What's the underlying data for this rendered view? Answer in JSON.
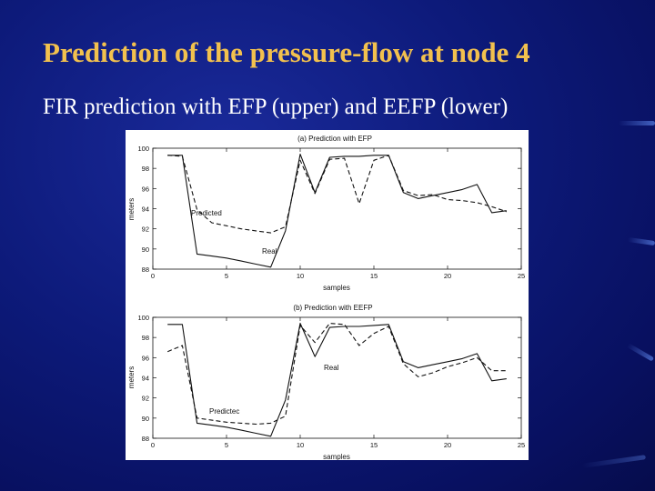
{
  "slide": {
    "title": "Prediction of the pressure-flow at node 4",
    "subtitle": "FIR prediction with EFP (upper) and EEFP (lower)"
  },
  "colors": {
    "background": "#0d1a7a",
    "title": "#f2c14e",
    "text": "#ffffff"
  },
  "chart_data": [
    {
      "type": "line",
      "title": "(a) Prediction with EFP",
      "xlabel": "samples",
      "ylabel": "meters",
      "xlim": [
        0,
        25
      ],
      "ylim": [
        88,
        100
      ],
      "xticks": [
        0,
        5,
        10,
        15,
        20,
        25
      ],
      "yticks": [
        88,
        90,
        92,
        94,
        96,
        98,
        100
      ],
      "annotations": [
        "Predicted",
        "Real"
      ],
      "series": [
        {
          "name": "Real",
          "style": "solid",
          "x": [
            1,
            2,
            3,
            4,
            5,
            6,
            7,
            8,
            9,
            10,
            11,
            12,
            13,
            14,
            15,
            16,
            17,
            18,
            19,
            20,
            21,
            22,
            23,
            24
          ],
          "y": [
            99.3,
            99.3,
            89.5,
            89.3,
            89.1,
            88.8,
            88.5,
            88.2,
            91.8,
            99.4,
            95.6,
            99.1,
            99.2,
            99.2,
            99.3,
            99.3,
            95.6,
            95.0,
            95.3,
            95.6,
            95.9,
            96.4,
            93.6,
            93.8
          ]
        },
        {
          "name": "Predicted",
          "style": "dashed",
          "x": [
            1,
            2,
            3,
            4,
            5,
            6,
            7,
            8,
            9,
            10,
            11,
            12,
            13,
            14,
            15,
            16,
            17,
            18,
            19,
            20,
            21,
            22,
            23,
            24
          ],
          "y": [
            99.3,
            99.2,
            93.9,
            92.6,
            92.3,
            92.0,
            91.8,
            91.6,
            92.2,
            98.8,
            95.5,
            98.9,
            99.0,
            94.5,
            98.8,
            99.3,
            95.8,
            95.3,
            95.4,
            94.9,
            94.8,
            94.6,
            94.2,
            93.7
          ]
        }
      ]
    },
    {
      "type": "line",
      "title": "(b) Prediction with EEFP",
      "xlabel": "samples",
      "ylabel": "meters",
      "xlim": [
        0,
        25
      ],
      "ylim": [
        88,
        100
      ],
      "xticks": [
        0,
        5,
        10,
        15,
        20,
        25
      ],
      "yticks": [
        88,
        90,
        92,
        94,
        96,
        98,
        100
      ],
      "annotations": [
        "Real",
        "Predictec"
      ],
      "series": [
        {
          "name": "Real",
          "style": "solid",
          "x": [
            1,
            2,
            3,
            4,
            5,
            6,
            7,
            8,
            9,
            10,
            11,
            12,
            13,
            14,
            15,
            16,
            17,
            18,
            19,
            20,
            21,
            22,
            23,
            24
          ],
          "y": [
            99.3,
            99.3,
            89.5,
            89.3,
            89.1,
            88.8,
            88.5,
            88.2,
            91.8,
            99.4,
            96.1,
            99.0,
            99.1,
            99.1,
            99.2,
            99.3,
            95.6,
            95.0,
            95.3,
            95.6,
            95.9,
            96.4,
            93.7,
            93.9
          ]
        },
        {
          "name": "Predicted",
          "style": "dashed",
          "x": [
            1,
            2,
            3,
            4,
            5,
            6,
            7,
            8,
            9,
            10,
            11,
            12,
            13,
            14,
            15,
            16,
            17,
            18,
            19,
            20,
            21,
            22,
            23,
            24
          ],
          "y": [
            96.6,
            97.2,
            90.0,
            89.8,
            89.6,
            89.5,
            89.4,
            89.5,
            90.2,
            99.2,
            97.5,
            99.4,
            99.3,
            97.2,
            98.4,
            99.1,
            95.4,
            94.1,
            94.5,
            95.1,
            95.5,
            96.0,
            94.7,
            94.7
          ]
        }
      ]
    }
  ]
}
